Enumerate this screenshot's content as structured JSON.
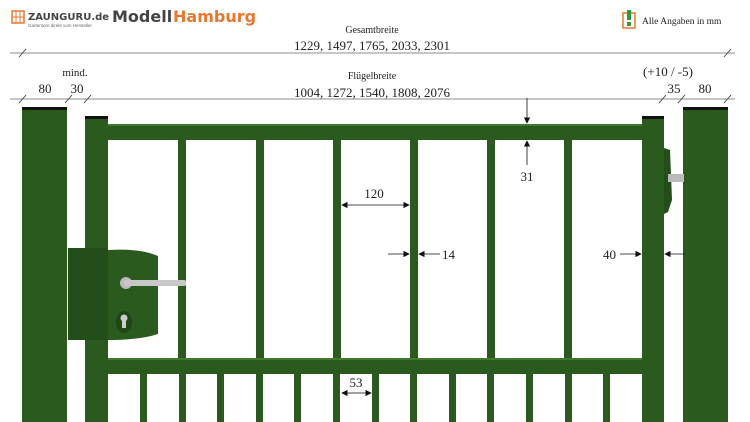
{
  "header": {
    "brand": "ZAUNGURU.de",
    "brand_tagline": "Gartentore direkt vom Hersteller",
    "model_prefix": "Modell",
    "model_name": "Hamburg",
    "units_note": "Alle Angaben in mm",
    "brand_color": "#e8772e"
  },
  "dimensions": {
    "overall_label": "Gesamtbreite",
    "overall_values": "1229, 1497, 1765, 2033, 2301",
    "leaf_label": "Flügelbreite",
    "leaf_values": "1004, 1272, 1540, 1808, 2076",
    "left_post": "80",
    "left_gap_note": "mind.",
    "left_gap": "30",
    "right_tolerance": "(+10 / -5)",
    "right_gap": "35",
    "right_post": "80",
    "rail_height": "31",
    "bar_spacing": "120",
    "bar_width": "14",
    "stile_width": "40",
    "picket_spacing": "53"
  },
  "colors": {
    "gate_green": "#2a5a1e",
    "dark_green": "#1f4716"
  }
}
